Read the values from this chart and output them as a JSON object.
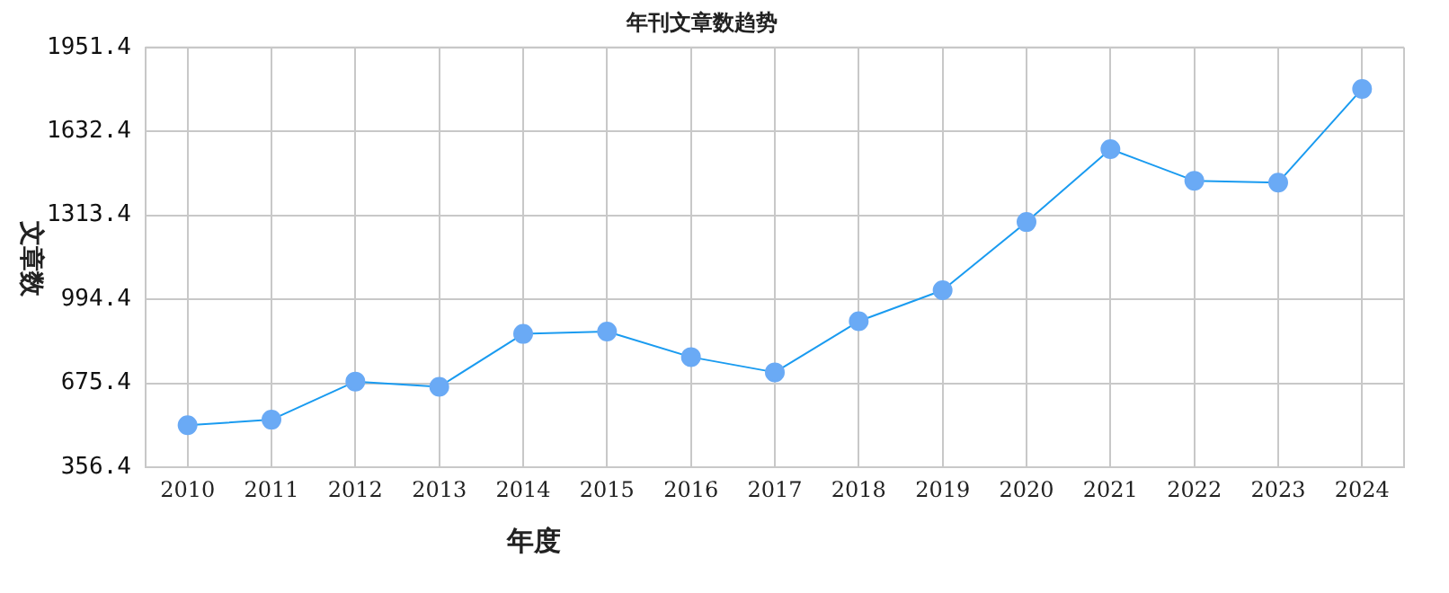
{
  "chart_data": {
    "type": "line",
    "title": "年刊文章数趋势",
    "xlabel": "年度",
    "ylabel": "文章数",
    "categories": [
      "2010",
      "2011",
      "2012",
      "2013",
      "2014",
      "2015",
      "2016",
      "2017",
      "2018",
      "2019",
      "2020",
      "2021",
      "2022",
      "2023",
      "2024"
    ],
    "series": [
      {
        "color": "#1a9bf0",
        "values": [
          516,
          537,
          682,
          662,
          863,
          872,
          775,
          717,
          911,
          1029,
          1288,
          1565,
          1445,
          1438,
          1794
        ]
      }
    ],
    "ylim": [
      356.4,
      1951.4
    ],
    "yticks": [
      {
        "value": 356.4,
        "label": "356.4"
      },
      {
        "value": 675.4,
        "label": "675.4"
      },
      {
        "value": 994.4,
        "label": "994.4"
      },
      {
        "value": 1313.4,
        "label": "1313.4"
      },
      {
        "value": 1632.4,
        "label": "1632.4"
      },
      {
        "value": 1951.4,
        "label": "1951.4"
      }
    ],
    "grid": true,
    "marker": "circle",
    "line_style": "solid",
    "legend": false
  }
}
